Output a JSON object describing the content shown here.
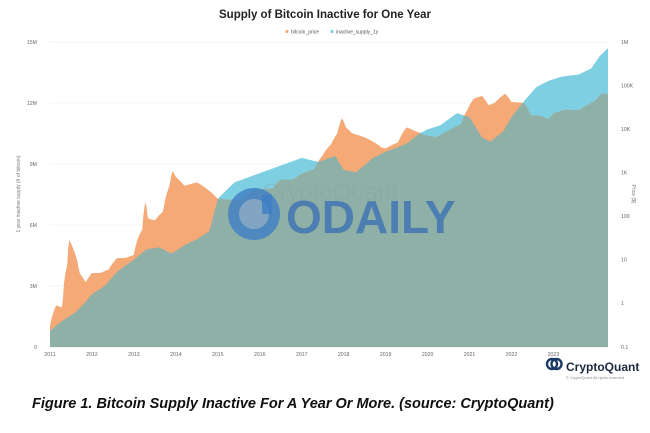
{
  "chart_data": {
    "type": "area",
    "title": "Supply of Bitcoin Inactive for One Year",
    "ylabel_left": "1 year inactive supply (# of bitcoin)",
    "ylabel_right": "Price ($)",
    "ylim_left": [
      0,
      15000000
    ],
    "ylim_right": [
      0.1,
      1000000
    ],
    "right_scale": "log",
    "left_ticks": [
      "0",
      "3M",
      "6M",
      "9M",
      "12M",
      "15M"
    ],
    "left_tick_values": [
      0,
      3000000,
      6000000,
      9000000,
      12000000,
      15000000
    ],
    "right_ticks": [
      "1M",
      "100K",
      "10K",
      "1K",
      "100",
      "10",
      "1",
      "0.1"
    ],
    "right_tick_values": [
      1000000,
      100000,
      10000,
      1000,
      100,
      10,
      1,
      0.1
    ],
    "x_ticks": [
      "2011",
      "2012",
      "2013",
      "2014",
      "2015",
      "2016",
      "2017",
      "2018",
      "2019",
      "2020",
      "2021",
      "2022",
      "2023"
    ],
    "x_tick_values": [
      2011,
      2012,
      2013,
      2014,
      2015,
      2016,
      2017,
      2018,
      2019,
      2020,
      2021,
      2022,
      2023
    ],
    "xlim": [
      2011,
      2024.3
    ],
    "grid": true,
    "legend_position": "top-center",
    "series": [
      {
        "name": "bitcoin_price",
        "color": "#f4a977",
        "axis": "right",
        "points": [
          [
            2011.0,
            0.3
          ],
          [
            2011.15,
            0.9
          ],
          [
            2011.3,
            0.8
          ],
          [
            2011.42,
            8
          ],
          [
            2011.45,
            30
          ],
          [
            2011.55,
            18
          ],
          [
            2011.7,
            5
          ],
          [
            2011.85,
            3
          ],
          [
            2012.0,
            5
          ],
          [
            2012.2,
            5
          ],
          [
            2012.4,
            6
          ],
          [
            2012.6,
            11
          ],
          [
            2012.8,
            11
          ],
          [
            2013.0,
            13
          ],
          [
            2013.2,
            50
          ],
          [
            2013.28,
            220
          ],
          [
            2013.33,
            90
          ],
          [
            2013.5,
            80
          ],
          [
            2013.7,
            130
          ],
          [
            2013.85,
            500
          ],
          [
            2013.92,
            1100
          ],
          [
            2014.0,
            800
          ],
          [
            2014.2,
            500
          ],
          [
            2014.5,
            600
          ],
          [
            2014.8,
            380
          ],
          [
            2015.0,
            250
          ],
          [
            2015.3,
            240
          ],
          [
            2015.6,
            250
          ],
          [
            2015.9,
            420
          ],
          [
            2016.3,
            430
          ],
          [
            2016.5,
            700
          ],
          [
            2016.8,
            700
          ],
          [
            2017.0,
            950
          ],
          [
            2017.3,
            1200
          ],
          [
            2017.5,
            2500
          ],
          [
            2017.7,
            4500
          ],
          [
            2017.85,
            8000
          ],
          [
            2017.96,
            18000
          ],
          [
            2018.05,
            11000
          ],
          [
            2018.2,
            8000
          ],
          [
            2018.5,
            6500
          ],
          [
            2018.9,
            3800
          ],
          [
            2019.0,
            3600
          ],
          [
            2019.3,
            5000
          ],
          [
            2019.5,
            11000
          ],
          [
            2019.7,
            9000
          ],
          [
            2019.95,
            7200
          ],
          [
            2020.2,
            6500
          ],
          [
            2020.5,
            9200
          ],
          [
            2020.8,
            13000
          ],
          [
            2020.95,
            28000
          ],
          [
            2021.1,
            50000
          ],
          [
            2021.3,
            58000
          ],
          [
            2021.45,
            35000
          ],
          [
            2021.6,
            40000
          ],
          [
            2021.85,
            65000
          ],
          [
            2022.0,
            42000
          ],
          [
            2022.3,
            40000
          ],
          [
            2022.45,
            21000
          ],
          [
            2022.7,
            20000
          ],
          [
            2022.88,
            16500
          ],
          [
            2023.0,
            23000
          ],
          [
            2023.3,
            28000
          ],
          [
            2023.6,
            27000
          ],
          [
            2023.8,
            35000
          ],
          [
            2024.0,
            45000
          ],
          [
            2024.15,
            65000
          ],
          [
            2024.3,
            64000
          ]
        ]
      },
      {
        "name": "inactive_supply_1y",
        "color": "#7fcfe3",
        "axis": "left",
        "points": [
          [
            2011.0,
            800000
          ],
          [
            2011.3,
            1300000
          ],
          [
            2011.6,
            1700000
          ],
          [
            2011.8,
            2100000
          ],
          [
            2012.0,
            2600000
          ],
          [
            2012.3,
            3000000
          ],
          [
            2012.6,
            3700000
          ],
          [
            2013.0,
            4300000
          ],
          [
            2013.3,
            4800000
          ],
          [
            2013.6,
            4900000
          ],
          [
            2013.9,
            4600000
          ],
          [
            2014.2,
            5000000
          ],
          [
            2014.5,
            5300000
          ],
          [
            2014.8,
            5700000
          ],
          [
            2015.0,
            7300000
          ],
          [
            2015.4,
            8100000
          ],
          [
            2015.8,
            8400000
          ],
          [
            2016.2,
            8700000
          ],
          [
            2016.6,
            9000000
          ],
          [
            2017.0,
            9300000
          ],
          [
            2017.4,
            9100000
          ],
          [
            2017.8,
            9400000
          ],
          [
            2018.0,
            8700000
          ],
          [
            2018.3,
            8600000
          ],
          [
            2018.7,
            9300000
          ],
          [
            2019.0,
            9600000
          ],
          [
            2019.5,
            10000000
          ],
          [
            2019.8,
            10500000
          ],
          [
            2020.0,
            10700000
          ],
          [
            2020.3,
            10900000
          ],
          [
            2020.7,
            11500000
          ],
          [
            2021.0,
            11300000
          ],
          [
            2021.3,
            10300000
          ],
          [
            2021.5,
            10100000
          ],
          [
            2021.8,
            10600000
          ],
          [
            2022.0,
            11300000
          ],
          [
            2022.3,
            12100000
          ],
          [
            2022.6,
            12800000
          ],
          [
            2022.9,
            13100000
          ],
          [
            2023.2,
            13300000
          ],
          [
            2023.6,
            13400000
          ],
          [
            2023.9,
            13700000
          ],
          [
            2024.1,
            14300000
          ],
          [
            2024.3,
            14700000
          ]
        ]
      }
    ],
    "watermark_text": "CryptoQuant",
    "overlay_logo_text": "ODAILY",
    "source_logo_text": "CryptoQuant",
    "source_copyright": "© CryptoQuant All rights reserved."
  },
  "caption": "Figure 1. Bitcoin Supply Inactive For A Year Or More. (source: CryptoQuant)"
}
